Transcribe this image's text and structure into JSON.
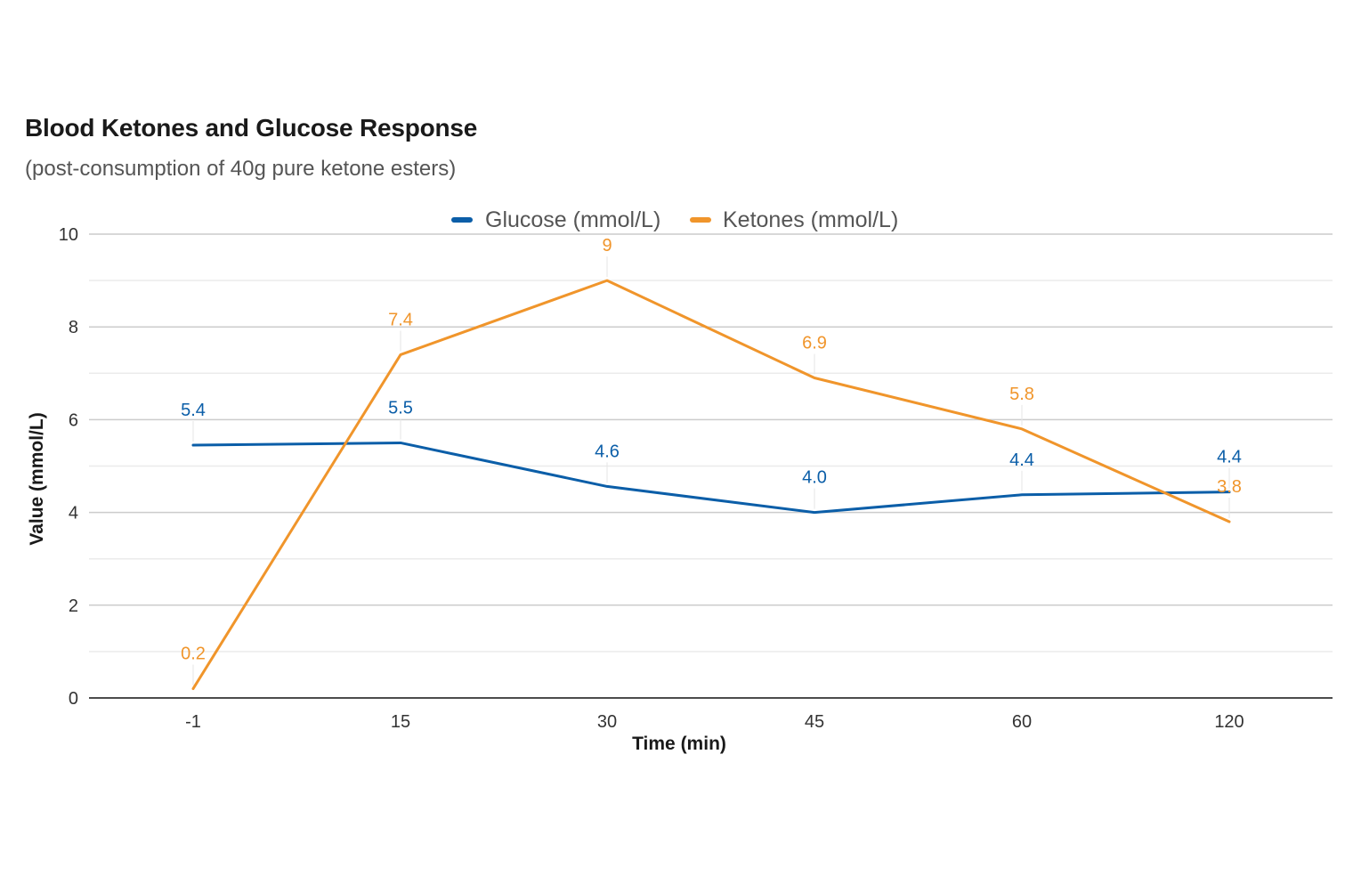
{
  "chart_data": {
    "type": "line",
    "title": "Blood Ketones and Glucose Response",
    "subtitle": "(post-consumption of 40g pure ketone esters)",
    "xlabel": "Time (min)",
    "ylabel": "Value (mmol/L)",
    "categories": [
      "-1",
      "15",
      "30",
      "45",
      "60",
      "120"
    ],
    "ylim": [
      0,
      10
    ],
    "yticks": [
      0,
      2,
      4,
      6,
      8,
      10
    ],
    "grid": true,
    "legend_position": "top-center",
    "series": [
      {
        "name": "Glucose (mmol/L)",
        "color": "#0b5ea8",
        "values": [
          5.45,
          5.5,
          4.56,
          4.0,
          4.38,
          4.44
        ],
        "labels": [
          "5.4",
          "5.5",
          "4.6",
          "4.0",
          "4.4",
          "4.4"
        ]
      },
      {
        "name": "Ketones (mmol/L)",
        "color": "#f0952b",
        "values": [
          0.2,
          7.4,
          9.0,
          6.9,
          5.8,
          3.8
        ],
        "labels": [
          "0.2",
          "7.4",
          "9",
          "6.9",
          "5.8",
          "3.8"
        ]
      }
    ]
  }
}
